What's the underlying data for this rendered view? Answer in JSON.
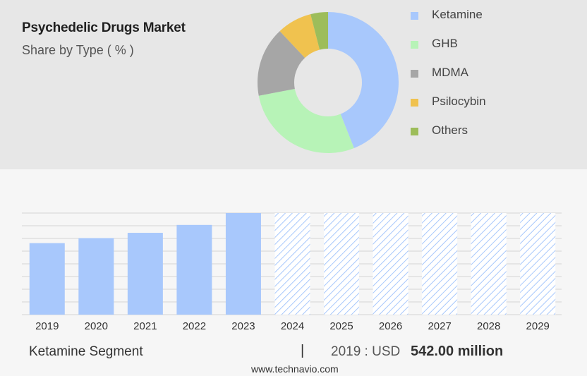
{
  "header": {
    "title": "Psychedelic Drugs Market",
    "subtitle": "Share by Type ( % )"
  },
  "footer": {
    "segment": "Ketamine Segment",
    "divider": "|",
    "year_label": "2019 : USD",
    "value": "542.00 million",
    "site": "www.technavio.com"
  },
  "chart_data": [
    {
      "type": "pie",
      "donut": true,
      "legend_position": "right",
      "categories": [
        "Ketamine",
        "GHB",
        "MDMA",
        "Psilocybin",
        "Others"
      ],
      "values": [
        44,
        28,
        16,
        8,
        4
      ],
      "colors": [
        "#a8c8fc",
        "#b7f3b7",
        "#a6a6a6",
        "#f0c24f",
        "#9dbd5a"
      ]
    },
    {
      "type": "bar",
      "categories": [
        "2019",
        "2020",
        "2021",
        "2022",
        "2023",
        "2024",
        "2025",
        "2026",
        "2027",
        "2028",
        "2029"
      ],
      "values": [
        542,
        580,
        620,
        680,
        770,
        null,
        null,
        null,
        null,
        null,
        null
      ],
      "forecast_from": "2024",
      "forecast_style": "hatched, full height",
      "bar_color": "#a8c8fc",
      "ylim": [
        0,
        770
      ],
      "grid": true
    }
  ]
}
